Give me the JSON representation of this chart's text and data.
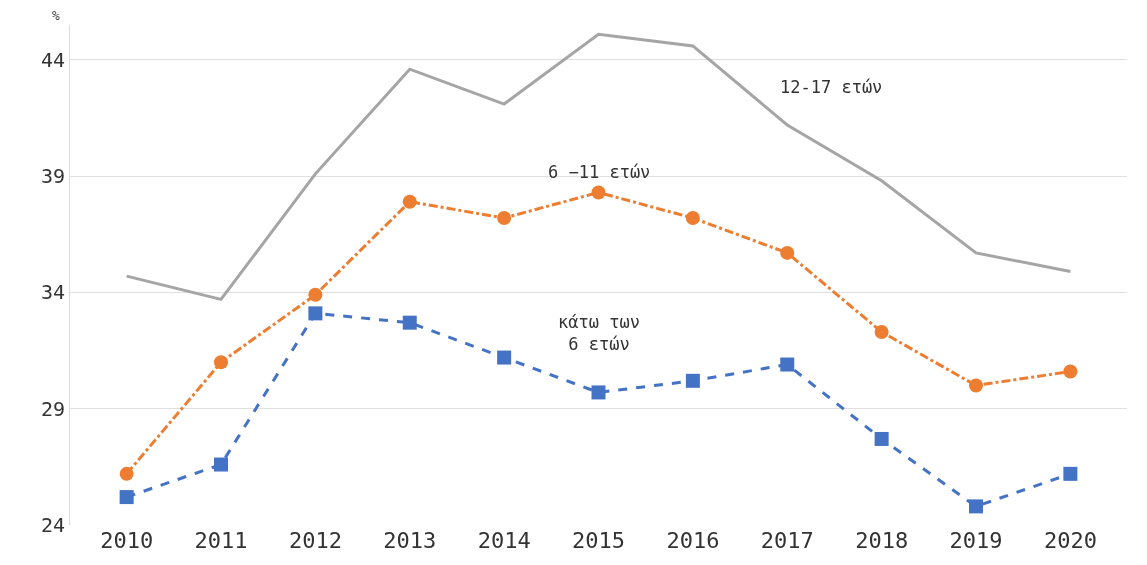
{
  "chart_data": {
    "type": "line",
    "ylabel": "%",
    "categories": [
      "2010",
      "2011",
      "2012",
      "2013",
      "2014",
      "2015",
      "2016",
      "2017",
      "2018",
      "2019",
      "2020"
    ],
    "series": [
      {
        "name": "12-17 ετών",
        "color": "#a5a5a5",
        "marker": "none",
        "line_style": "solid",
        "values": [
          34.7,
          33.7,
          39.1,
          43.6,
          42.1,
          45.1,
          44.6,
          41.2,
          38.8,
          35.7,
          34.9
        ]
      },
      {
        "name": "6 −11 ετών",
        "color": "#ed7d31",
        "marker": "circle",
        "line_style": "dashdot",
        "values": [
          26.2,
          31.0,
          33.9,
          37.9,
          37.2,
          38.3,
          37.2,
          35.7,
          32.3,
          30.0,
          30.6
        ]
      },
      {
        "name": "κάτω των\n6 ετών",
        "color": "#4472c4",
        "marker": "square",
        "line_style": "dashed",
        "values": [
          25.2,
          26.6,
          33.1,
          32.7,
          31.2,
          29.7,
          30.2,
          30.9,
          27.7,
          24.8,
          26.2
        ]
      }
    ],
    "ylim": [
      24,
      45.5
    ],
    "yticks": [
      24,
      29,
      34,
      39,
      44
    ],
    "grid": "y"
  }
}
